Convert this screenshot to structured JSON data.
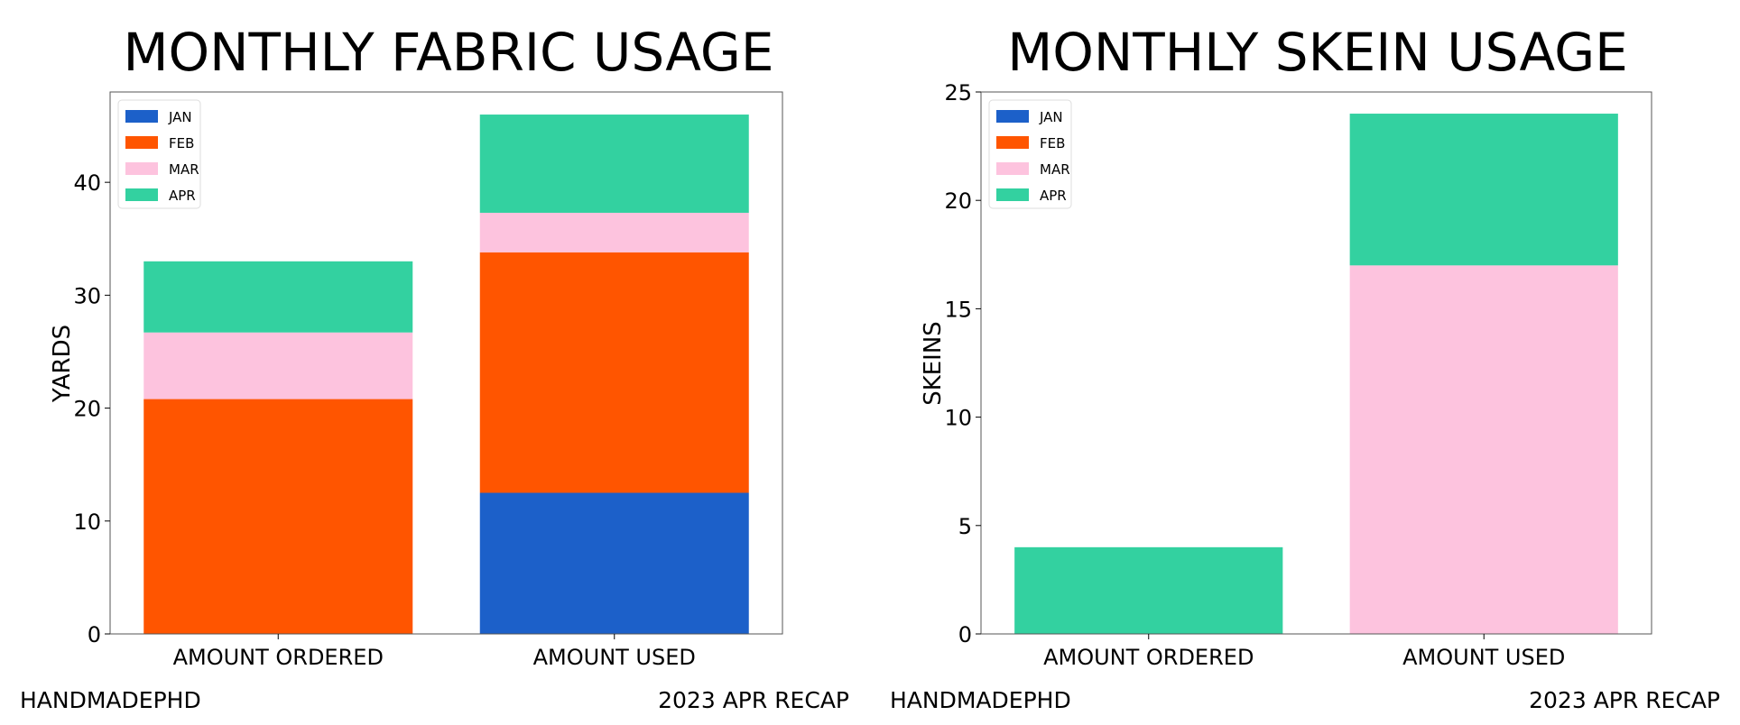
{
  "colors": {
    "JAN": "#1c60c9",
    "FEB": "#ff5500",
    "MAR": "#fdc3de",
    "APR": "#33d1a0"
  },
  "chart_data": [
    {
      "type": "bar",
      "stacked": true,
      "title": "MONTHLY FABRIC USAGE",
      "xlabel": "",
      "ylabel": "YARDS",
      "ylim": [
        0,
        48
      ],
      "yticks": [
        "0",
        "10",
        "20",
        "30",
        "40"
      ],
      "categories": [
        "AMOUNT ORDERED",
        "AMOUNT USED"
      ],
      "series": [
        {
          "name": "JAN",
          "values": [
            0,
            12.5
          ]
        },
        {
          "name": "FEB",
          "values": [
            20.8,
            21.3
          ]
        },
        {
          "name": "MAR",
          "values": [
            5.9,
            3.5
          ]
        },
        {
          "name": "APR",
          "values": [
            6.3,
            8.7
          ]
        }
      ],
      "legend": "top-left",
      "grid": false,
      "footer_left": "HANDMADEPHD",
      "footer_right": "2023 APR RECAP"
    },
    {
      "type": "bar",
      "stacked": true,
      "title": "MONTHLY SKEIN USAGE",
      "xlabel": "",
      "ylabel": "SKEINS",
      "ylim": [
        0,
        25
      ],
      "yticks": [
        "0",
        "5",
        "10",
        "15",
        "20",
        "25"
      ],
      "categories": [
        "AMOUNT ORDERED",
        "AMOUNT USED"
      ],
      "series": [
        {
          "name": "JAN",
          "values": [
            0,
            0
          ]
        },
        {
          "name": "FEB",
          "values": [
            0,
            0
          ]
        },
        {
          "name": "MAR",
          "values": [
            0,
            17
          ]
        },
        {
          "name": "APR",
          "values": [
            4,
            7
          ]
        }
      ],
      "legend": "top-left",
      "grid": false,
      "footer_left": "HANDMADEPHD",
      "footer_right": "2023 APR RECAP"
    }
  ]
}
